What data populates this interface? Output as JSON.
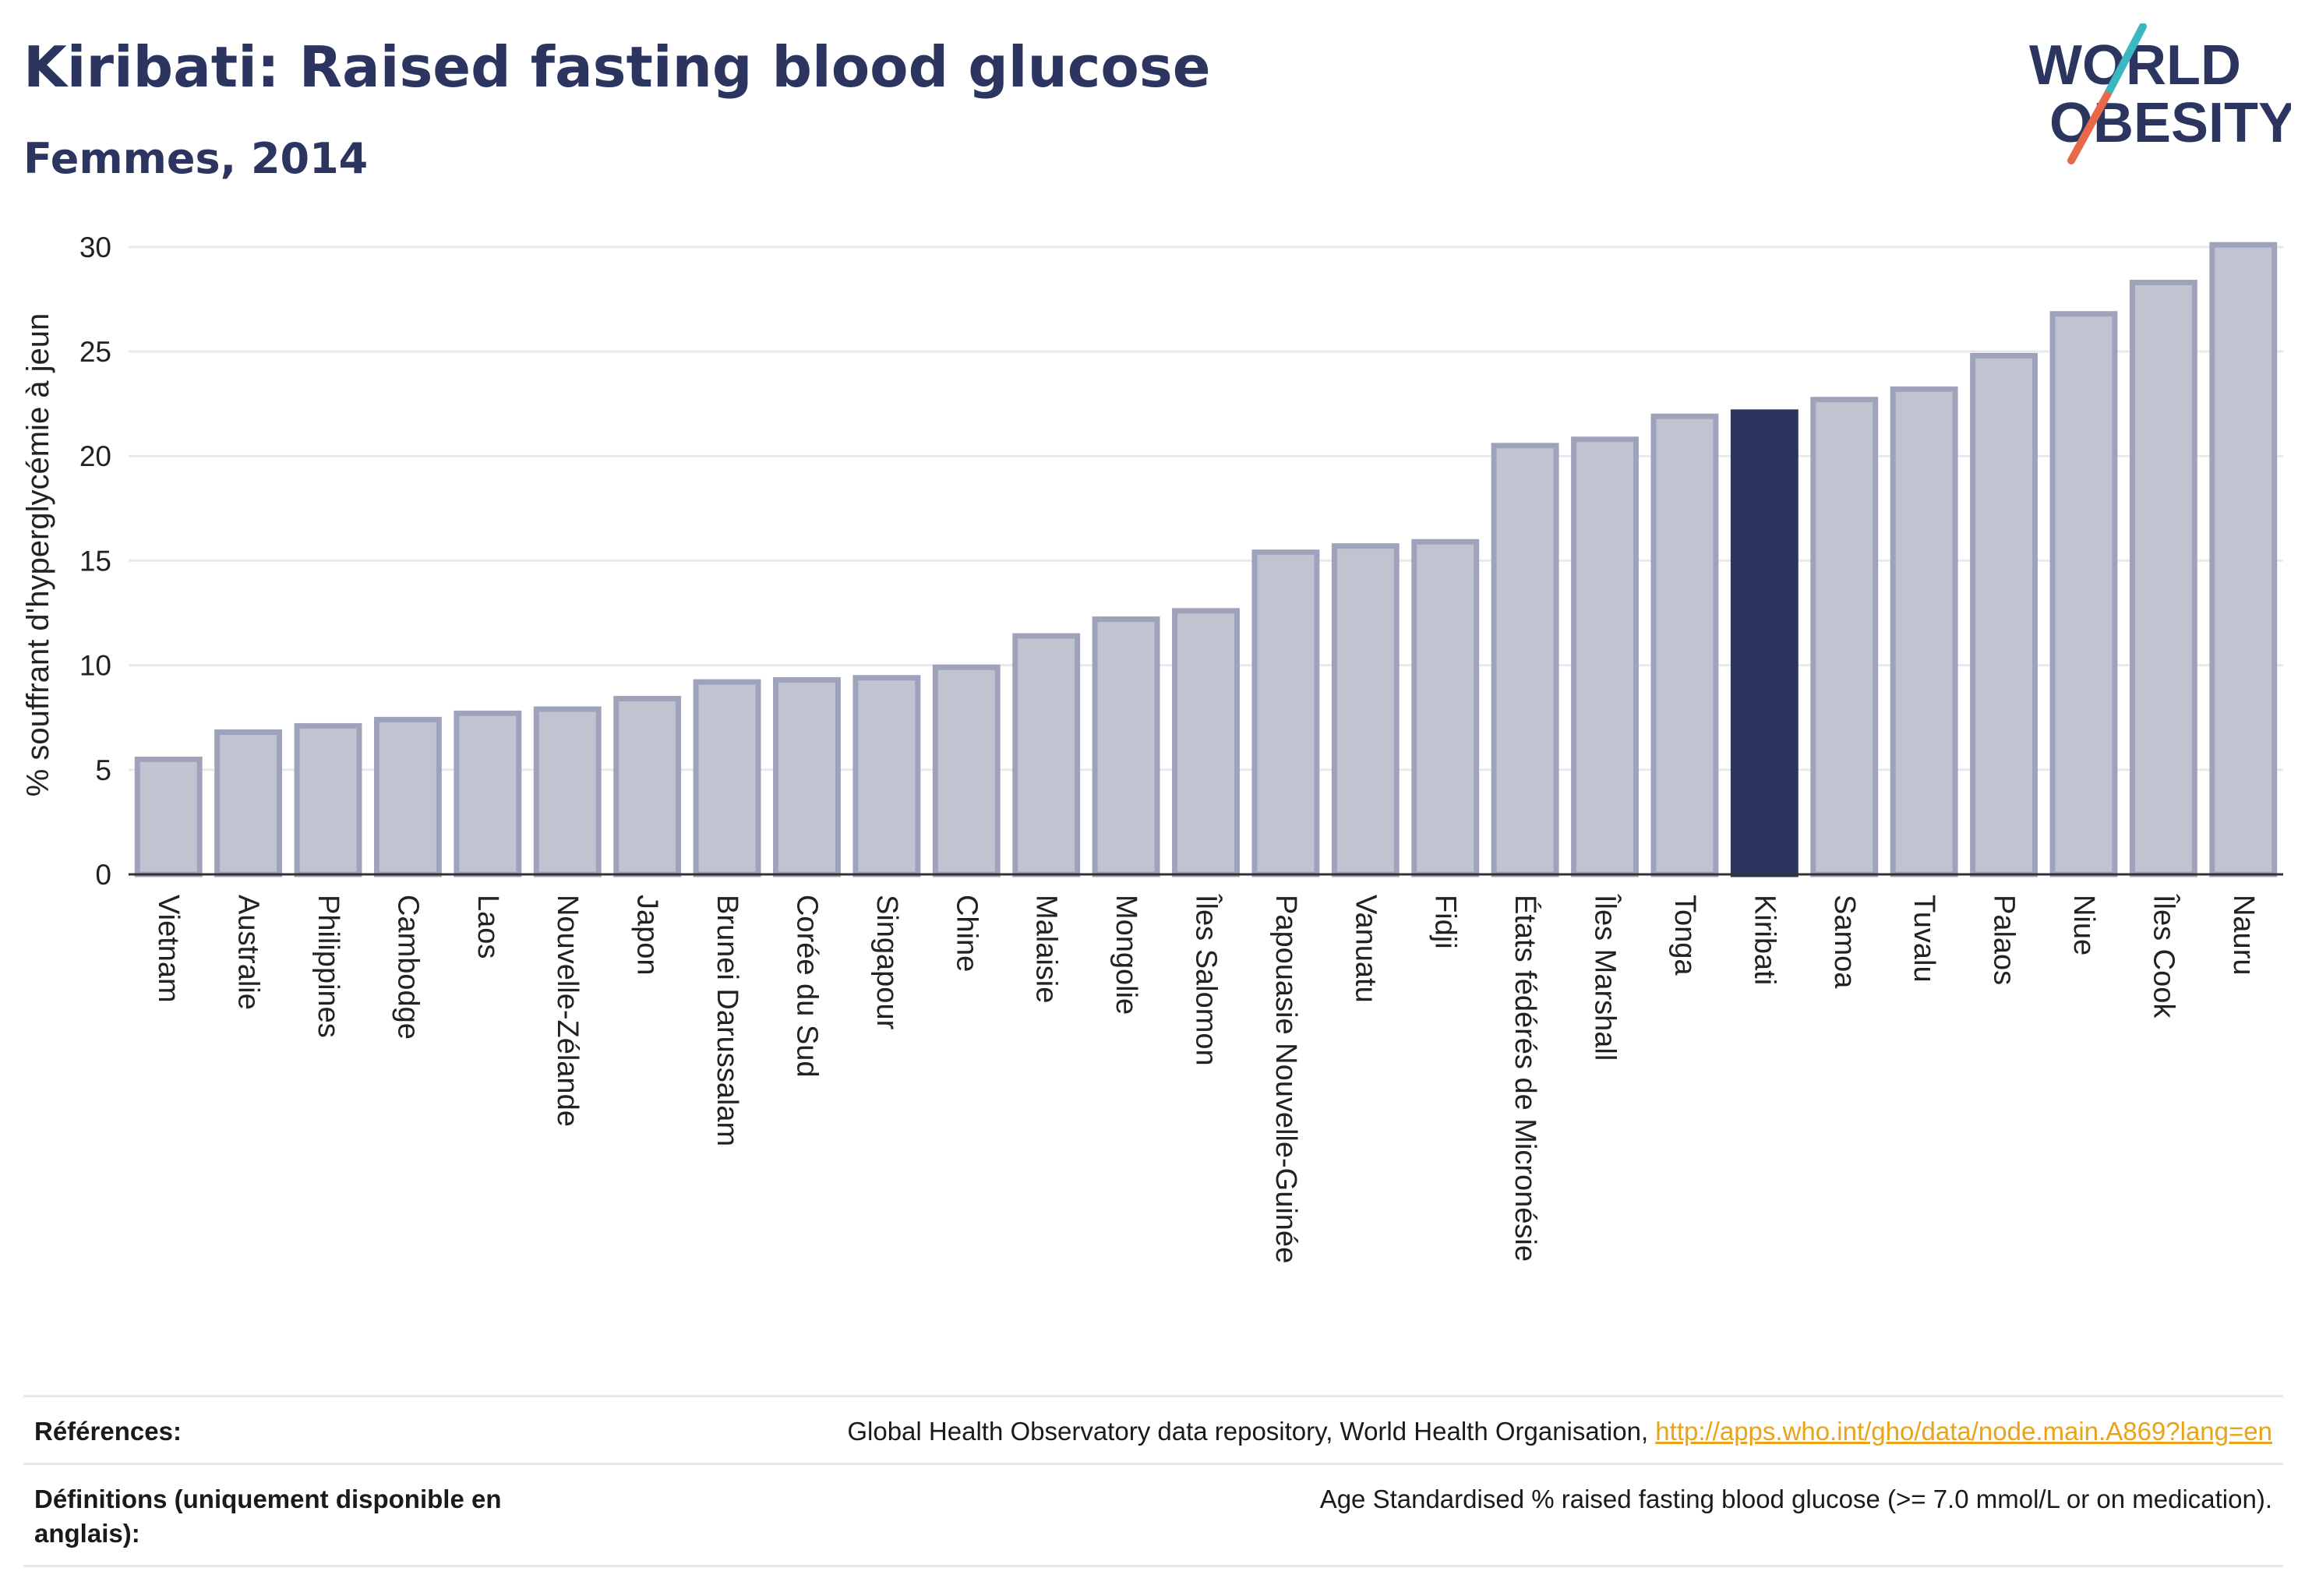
{
  "header": {
    "title": "Kiribati: Raised fasting blood glucose",
    "subtitle": "Femmes, 2014"
  },
  "logo": {
    "line1": "WORLD",
    "line2": "OBESITY",
    "colors": {
      "text": "#2b3560",
      "slash_top": "#3ab7c0",
      "slash_bottom": "#e8684a"
    }
  },
  "chart_data": {
    "type": "bar",
    "title": "Kiribati: Raised fasting blood glucose",
    "subtitle": "Femmes, 2014",
    "xlabel": "",
    "ylabel": "% souffrant d'hyperglycémie à jeun",
    "ylim": [
      0,
      31
    ],
    "yticks": [
      0,
      5,
      10,
      15,
      20,
      25,
      30
    ],
    "grid": true,
    "highlight": "Kiribati",
    "colors": {
      "bar": "#c0c4d1",
      "bar_border": "#9ea3bb",
      "highlight": "#2b3560"
    },
    "categories": [
      "Vietnam",
      "Australie",
      "Philippines",
      "Cambodge",
      "Laos",
      "Nouvelle-Zélande",
      "Japon",
      "Brunei Darussalam",
      "Corée du Sud",
      "Singapour",
      "Chine",
      "Malaisie",
      "Mongolie",
      "Îles Salomon",
      "Papouasie Nouvelle-Guinée",
      "Vanuatu",
      "Fidji",
      "États fédérés de Micronésie",
      "Îles Marshall",
      "Tonga",
      "Kiribati",
      "Samoa",
      "Tuvalu",
      "Palaos",
      "Niue",
      "Îles Cook",
      "Nauru"
    ],
    "values": [
      5.5,
      6.8,
      7.1,
      7.4,
      7.7,
      7.9,
      8.4,
      9.2,
      9.3,
      9.4,
      9.9,
      11.4,
      12.2,
      12.6,
      15.4,
      15.7,
      15.9,
      20.5,
      20.8,
      21.9,
      22.1,
      22.7,
      23.2,
      24.8,
      26.8,
      28.3,
      30.1
    ]
  },
  "footer": {
    "references_label": "Références:",
    "references_text": "Global Health Observatory data repository, World Health Organisation, ",
    "references_link": "http://apps.who.int/gho/data/node.main.A869?lang=en",
    "definitions_label": "Définitions (uniquement disponible en anglais):",
    "definitions_text": "Age Standardised % raised fasting blood glucose (>= 7.0 mmol/L or on medication)."
  }
}
